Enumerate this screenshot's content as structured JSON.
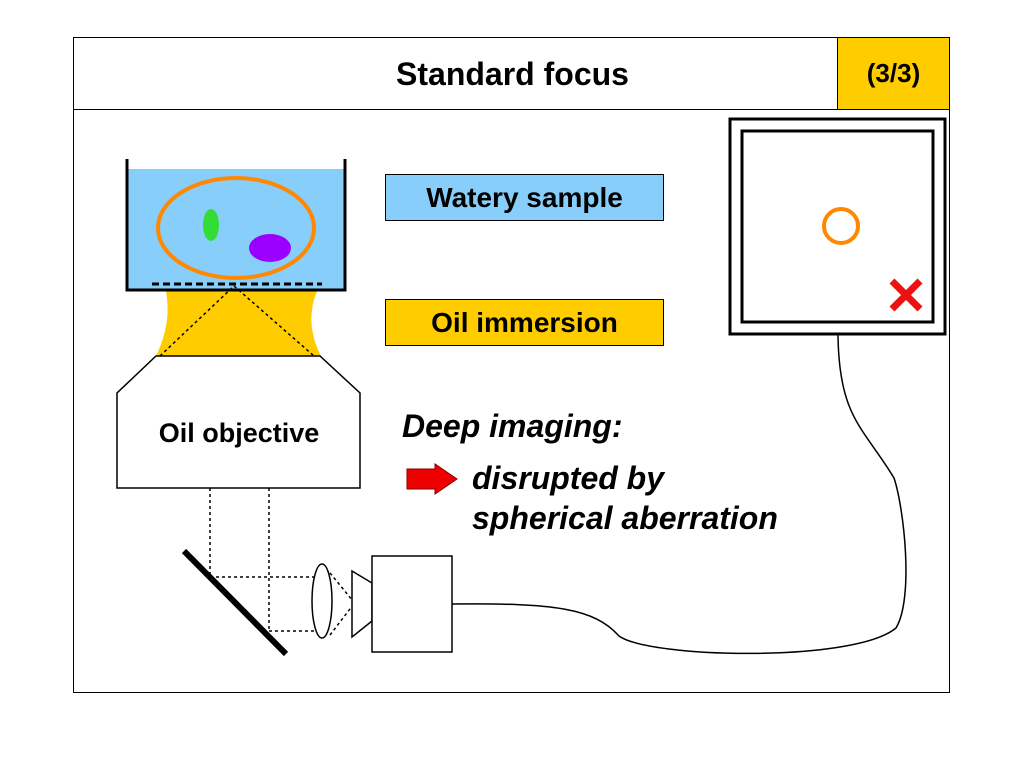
{
  "header": {
    "title": "Standard focus",
    "slide_number": "(3/3)"
  },
  "labels": {
    "watery_sample": "Watery sample",
    "oil_immersion": "Oil immersion",
    "oil_objective": "Oil objective",
    "deep_imaging": "Deep imaging:",
    "result_line1": "disrupted by",
    "result_line2": "spherical aberration"
  },
  "icons": {
    "arrow": "red-right-arrow-icon",
    "cross": "red-x-icon",
    "target_circle": "orange-circle-icon"
  },
  "colors": {
    "water": "#87cefa",
    "oil": "#ffcc00",
    "cell_outline": "#ff8800",
    "nucleus_green": "#33dd33",
    "nucleus_purple": "#9900ff",
    "arrow_red": "#ee0000",
    "cross_red": "#ee1111"
  }
}
